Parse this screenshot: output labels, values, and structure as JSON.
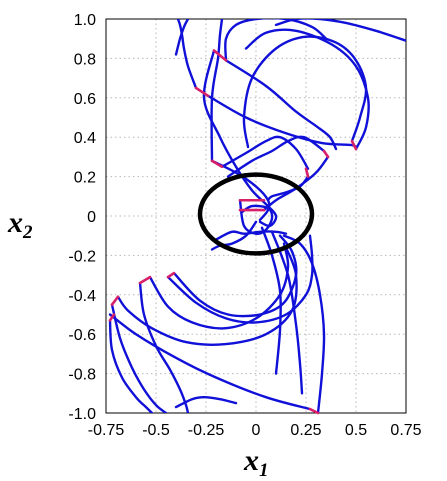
{
  "chart_data": {
    "type": "line",
    "title": "",
    "xlabel": "x",
    "xlabel_sub": "1",
    "ylabel": "x",
    "ylabel_sub": "2",
    "xlim": [
      -0.75,
      0.75
    ],
    "ylim": [
      -1.0,
      1.0
    ],
    "xticks": [
      "-0.75",
      "-0.5",
      "-0.25",
      "0",
      "0.25",
      "0.5",
      "0.75"
    ],
    "yticks": [
      "1.0",
      "0.8",
      "0.6",
      "0.4",
      "0.2",
      "0",
      "-0.2",
      "-0.4",
      "-0.6",
      "-0.8",
      "-1.0"
    ],
    "grid": true,
    "colors": {
      "trajectory": "#1010d8",
      "initial_segment": "#d8206a",
      "region": "#000000"
    },
    "region_ellipse": {
      "cx": 0.0,
      "cy": 0.01,
      "rx": 0.28,
      "ry": 0.2
    },
    "initial_segments": [
      {
        "x": [
          -0.21,
          -0.15
        ],
        "y": [
          0.84,
          0.79
        ]
      },
      {
        "x": [
          -0.3,
          -0.24
        ],
        "y": [
          0.65,
          0.61
        ]
      },
      {
        "x": [
          -0.22,
          -0.17
        ],
        "y": [
          0.28,
          0.25
        ]
      },
      {
        "x": [
          0.48,
          0.5
        ],
        "y": [
          0.38,
          0.34
        ]
      },
      {
        "x": [
          0.34,
          0.36
        ],
        "y": [
          0.33,
          0.3
        ]
      },
      {
        "x": [
          0.25,
          0.26
        ],
        "y": [
          0.24,
          0.2
        ]
      },
      {
        "x": [
          -0.08,
          0.04
        ],
        "y": [
          0.08,
          0.08
        ]
      },
      {
        "x": [
          -0.08,
          0.04
        ],
        "y": [
          0.03,
          0.03
        ]
      },
      {
        "x": [
          -0.58,
          -0.53
        ],
        "y": [
          -0.34,
          -0.31
        ]
      },
      {
        "x": [
          -0.44,
          -0.41
        ],
        "y": [
          -0.31,
          -0.29
        ]
      },
      {
        "x": [
          -0.72,
          -0.69
        ],
        "y": [
          -0.45,
          -0.41
        ]
      },
      {
        "x": [
          -0.73,
          -0.71
        ],
        "y": [
          -0.53,
          -0.5
        ]
      },
      {
        "x": [
          0.27,
          0.31
        ],
        "y": [
          -0.98,
          -1.0
        ]
      }
    ],
    "series": [
      {
        "x": [
          -0.21,
          -0.26,
          -0.18,
          -0.1,
          -0.02,
          0.05,
          0.1,
          0.07,
          0.02
        ],
        "y": [
          0.84,
          0.6,
          0.4,
          0.25,
          0.13,
          0.06,
          0.0,
          -0.05,
          -0.03
        ]
      },
      {
        "x": [
          -0.15,
          0.05,
          0.2,
          0.31,
          0.37,
          0.4
        ],
        "y": [
          0.79,
          0.66,
          0.53,
          0.45,
          0.4,
          0.34
        ]
      },
      {
        "x": [
          -0.24,
          -0.05,
          0.15,
          0.33,
          0.48,
          0.5
        ],
        "y": [
          0.61,
          0.5,
          0.42,
          0.37,
          0.36,
          0.34
        ]
      },
      {
        "x": [
          0.48,
          0.52,
          0.55,
          0.5,
          0.4,
          0.25,
          0.1,
          -0.02,
          -0.06,
          -0.04
        ],
        "y": [
          0.38,
          0.5,
          0.65,
          0.79,
          0.88,
          0.91,
          0.85,
          0.7,
          0.5,
          0.35
        ]
      },
      {
        "x": [
          0.5,
          0.55,
          0.56,
          0.5,
          0.38,
          0.2,
          0.05,
          -0.05
        ],
        "y": [
          0.34,
          0.45,
          0.6,
          0.76,
          0.87,
          0.94,
          0.93,
          0.85
        ]
      },
      {
        "x": [
          0.1,
          0.2,
          0.32,
          0.45,
          0.6,
          0.75
        ],
        "y": [
          0.97,
          1.0,
          1.0,
          0.98,
          0.94,
          0.89
        ]
      },
      {
        "x": [
          -0.15,
          -0.15,
          -0.1,
          0.0,
          0.15,
          0.28,
          0.35
        ],
        "y": [
          0.79,
          0.9,
          0.97,
          1.0,
          1.0,
          0.96,
          0.9
        ]
      },
      {
        "x": [
          -0.3,
          -0.34,
          -0.36,
          -0.37,
          -0.38,
          -0.39
        ],
        "y": [
          0.65,
          0.76,
          0.85,
          0.92,
          0.97,
          1.0
        ]
      },
      {
        "x": [
          -0.4,
          -0.38,
          -0.36,
          -0.34
        ],
        "y": [
          0.82,
          0.9,
          0.96,
          1.0
        ]
      },
      {
        "x": [
          -0.22,
          -0.22,
          -0.19,
          -0.18,
          -0.17
        ],
        "y": [
          0.28,
          0.6,
          0.8,
          0.92,
          1.0
        ]
      },
      {
        "x": [
          -0.22,
          -0.1,
          0.0,
          0.06,
          0.06,
          0.02
        ],
        "y": [
          0.28,
          0.22,
          0.15,
          0.08,
          0.03,
          -0.02
        ]
      },
      {
        "x": [
          -0.17,
          -0.05,
          0.05,
          0.12,
          0.2,
          0.26
        ],
        "y": [
          0.25,
          0.32,
          0.38,
          0.4,
          0.34,
          0.24
        ]
      },
      {
        "x": [
          -0.14,
          -0.02,
          0.08,
          0.16,
          0.24,
          0.34
        ],
        "y": [
          0.2,
          0.28,
          0.33,
          0.38,
          0.4,
          0.33
        ]
      },
      {
        "x": [
          0.26,
          0.22,
          0.15,
          0.08,
          0.06
        ],
        "y": [
          0.2,
          0.15,
          0.12,
          0.1,
          0.08
        ]
      },
      {
        "x": [
          0.36,
          0.3,
          0.2,
          0.1,
          0.04
        ],
        "y": [
          0.3,
          0.22,
          0.14,
          0.08,
          0.03
        ]
      },
      {
        "x": [
          -0.08,
          -0.06,
          0.0,
          0.05,
          0.08,
          0.06,
          -0.02,
          -0.07
        ],
        "y": [
          0.08,
          -0.05,
          -0.09,
          -0.07,
          -0.01,
          0.04,
          0.05,
          0.02
        ]
      },
      {
        "x": [
          -0.2,
          -0.12,
          -0.06,
          0.02,
          0.1,
          0.15
        ],
        "y": [
          -0.12,
          -0.08,
          -0.09,
          -0.08,
          -0.08,
          -0.09
        ]
      },
      {
        "x": [
          0.0,
          -0.05,
          -0.12,
          -0.18,
          -0.22
        ],
        "y": [
          -0.03,
          -0.1,
          -0.14,
          -0.15,
          -0.17
        ]
      },
      {
        "x": [
          0.03,
          0.08,
          0.12,
          0.12,
          0.1
        ],
        "y": [
          -0.06,
          -0.2,
          -0.38,
          -0.58,
          -0.8
        ]
      },
      {
        "x": [
          0.08,
          0.16,
          0.2,
          0.22,
          0.23
        ],
        "y": [
          -0.08,
          -0.3,
          -0.55,
          -0.75,
          -0.9
        ]
      },
      {
        "x": [
          0.12,
          0.18,
          0.2,
          0.14,
          0.02,
          -0.14,
          -0.28,
          -0.41
        ],
        "y": [
          -0.1,
          -0.18,
          -0.3,
          -0.44,
          -0.5,
          -0.5,
          -0.43,
          -0.29
        ]
      },
      {
        "x": [
          0.14,
          0.16,
          0.12,
          0.0,
          -0.16,
          -0.32,
          -0.44,
          -0.53
        ],
        "y": [
          -0.14,
          -0.26,
          -0.4,
          -0.52,
          -0.57,
          -0.54,
          -0.46,
          -0.31
        ]
      },
      {
        "x": [
          0.15,
          0.2,
          0.18,
          0.05,
          -0.15,
          -0.35,
          -0.52,
          -0.64,
          -0.69
        ],
        "y": [
          -0.16,
          -0.3,
          -0.48,
          -0.6,
          -0.65,
          -0.64,
          -0.57,
          -0.48,
          -0.41
        ]
      },
      {
        "x": [
          -0.58,
          -0.56,
          -0.5,
          -0.43,
          -0.38,
          -0.35,
          -0.34
        ],
        "y": [
          -0.34,
          -0.5,
          -0.66,
          -0.78,
          -0.88,
          -0.96,
          -1.0
        ]
      },
      {
        "x": [
          -0.72,
          -0.68,
          -0.62,
          -0.56,
          -0.5,
          -0.45
        ],
        "y": [
          -0.45,
          -0.62,
          -0.77,
          -0.88,
          -0.96,
          -1.0
        ]
      },
      {
        "x": [
          -0.73,
          -0.72,
          -0.67,
          -0.6,
          -0.55,
          -0.52
        ],
        "y": [
          -0.53,
          -0.68,
          -0.82,
          -0.92,
          -0.97,
          -1.0
        ]
      },
      {
        "x": [
          -0.73,
          -0.6,
          -0.4,
          -0.2,
          0.05,
          0.27
        ],
        "y": [
          -0.5,
          -0.6,
          -0.72,
          -0.82,
          -0.92,
          -0.98
        ]
      },
      {
        "x": [
          -0.44,
          -0.3,
          -0.15,
          0.0,
          0.15,
          0.25,
          0.28,
          0.28,
          0.27
        ],
        "y": [
          -0.31,
          -0.44,
          -0.52,
          -0.54,
          -0.5,
          -0.4,
          -0.3,
          -0.2,
          -0.1
        ]
      },
      {
        "x": [
          0.31,
          0.33,
          0.34,
          0.32,
          0.28,
          0.22,
          0.14
        ],
        "y": [
          -1.0,
          -0.8,
          -0.6,
          -0.4,
          -0.24,
          -0.14,
          -0.1
        ]
      },
      {
        "x": [
          -0.1,
          -0.18,
          -0.26,
          -0.32,
          -0.4
        ],
        "y": [
          -0.95,
          -0.93,
          -0.92,
          -0.93,
          -0.97
        ]
      }
    ]
  }
}
